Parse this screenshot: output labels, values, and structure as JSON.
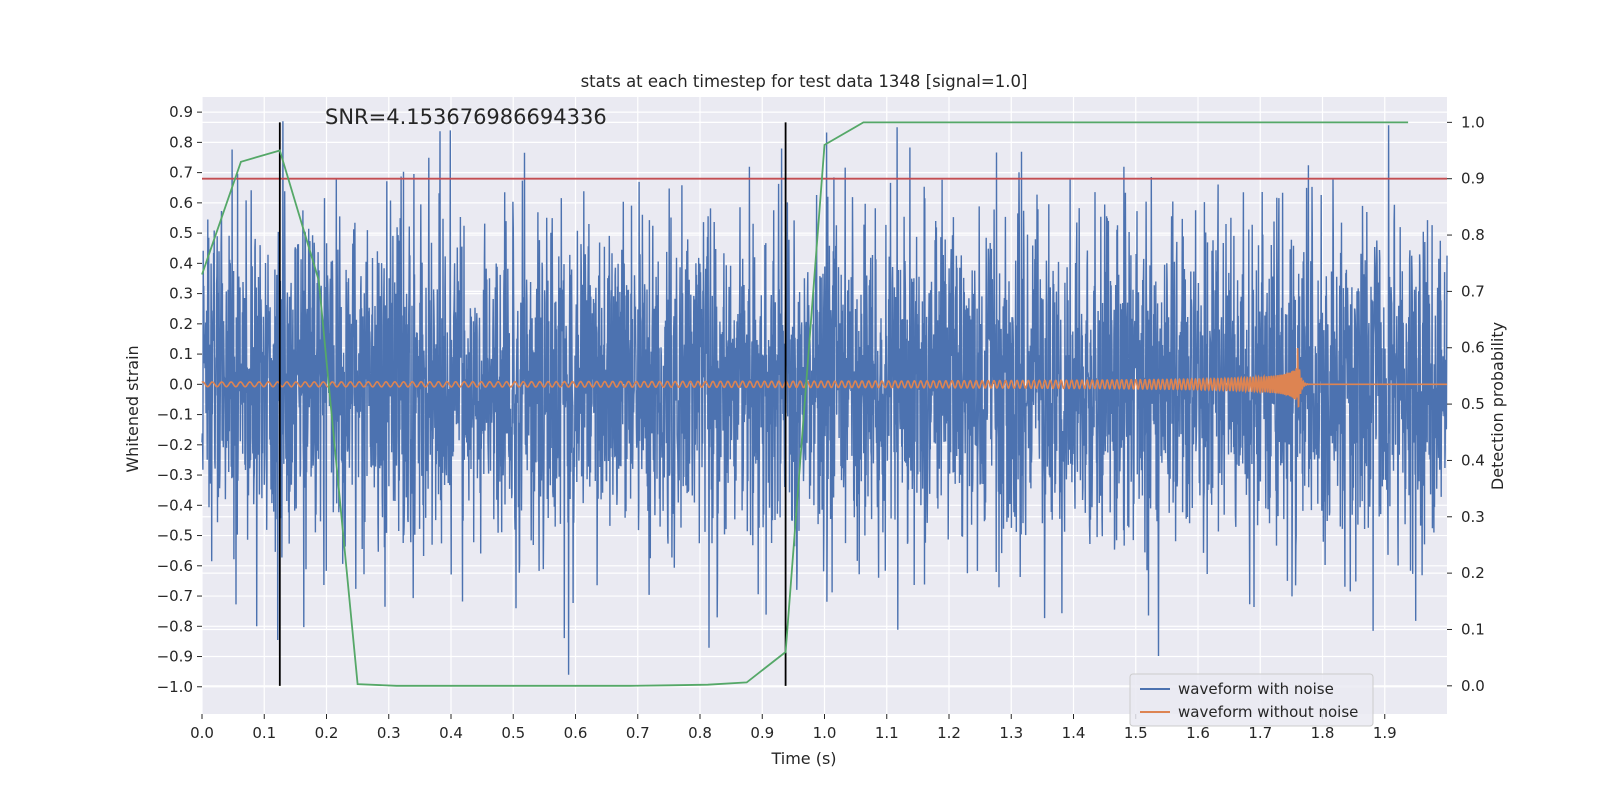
{
  "chart_data": {
    "type": "line",
    "title": "stats at each timestep for test data 1348 [signal=1.0]",
    "xlabel": "Time (s)",
    "ylabel": "Whitened strain",
    "y2label": "Detection probability",
    "annotation": "SNR=4.153676986694336",
    "xlim": [
      0.0,
      2.0
    ],
    "ylim": [
      -1.09,
      0.95
    ],
    "y2lim": [
      -0.05,
      1.045
    ],
    "grid": true,
    "legend_position": "lower right",
    "x_ticks": [
      "0.0",
      "0.1",
      "0.2",
      "0.3",
      "0.4",
      "0.5",
      "0.6",
      "0.7",
      "0.8",
      "0.9",
      "1.0",
      "1.1",
      "1.2",
      "1.3",
      "1.4",
      "1.5",
      "1.6",
      "1.7",
      "1.8",
      "1.9"
    ],
    "y_ticks": [
      "0.9",
      "0.8",
      "0.7",
      "0.6",
      "0.5",
      "0.4",
      "0.3",
      "0.2",
      "0.1",
      "0.0",
      "−0.1",
      "−0.2",
      "−0.3",
      "−0.4",
      "−0.5",
      "−0.6",
      "−0.7",
      "−0.8",
      "−0.9",
      "−1.0"
    ],
    "y2_ticks": [
      "1.0",
      "0.9",
      "0.8",
      "0.7",
      "0.6",
      "0.5",
      "0.4",
      "0.3",
      "0.2",
      "0.1",
      "0.0"
    ],
    "series": [
      {
        "name": "waveform with noise",
        "axis": "left",
        "color": "#4c72b0",
        "kind": "noise",
        "x_range": [
          0.0,
          2.0
        ],
        "amplitude_range": [
          -1.0,
          0.87
        ]
      },
      {
        "name": "waveform without noise",
        "axis": "left",
        "color": "#dd8452",
        "kind": "chirp",
        "x_range": [
          0.0,
          2.0
        ],
        "merger_time": 1.76,
        "peak_amplitude": 0.12
      },
      {
        "axis": "right",
        "color": "#55a868",
        "x": [
          0.0,
          0.0625,
          0.125,
          0.1875,
          0.25,
          0.3125,
          0.375,
          0.4375,
          0.5,
          0.5625,
          0.625,
          0.6875,
          0.75,
          0.8125,
          0.875,
          0.9375,
          1.0,
          1.0625,
          1.125,
          1.1875,
          1.25,
          1.3125,
          1.375,
          1.4375,
          1.5,
          1.5625,
          1.625,
          1.6875,
          1.75,
          1.8125,
          1.875,
          1.9375
        ],
        "y": [
          0.73,
          0.93,
          0.95,
          0.72,
          0.003,
          0.0,
          0.0,
          0.0,
          0.0,
          0.0,
          0.0,
          0.0,
          0.001,
          0.002,
          0.006,
          0.06,
          0.96,
          1.0,
          1.0,
          1.0,
          1.0,
          1.0,
          1.0,
          1.0,
          1.0,
          1.0,
          1.0,
          1.0,
          1.0,
          1.0,
          1.0,
          1.0
        ]
      }
    ],
    "threshold_line": {
      "axis": "right",
      "value": 0.9,
      "color": "#c44e52"
    },
    "vertical_markers": {
      "x": [
        0.125,
        0.9375
      ],
      "color": "#000000"
    }
  }
}
